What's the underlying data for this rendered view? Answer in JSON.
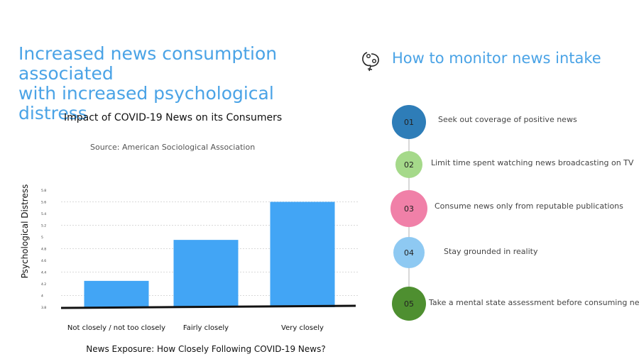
{
  "headline": {
    "line1": "Increased news consumption associated",
    "line2": "with increased psychological distress"
  },
  "monitor": {
    "title": "How to monitor news intake",
    "icon": "brain-gears-icon",
    "steps": [
      {
        "num": "01",
        "text": "Seek out coverage of positive news",
        "color": "#2e7db8"
      },
      {
        "num": "02",
        "text": "Limit time spent watching news broadcasting on TV",
        "color": "#a5d98a"
      },
      {
        "num": "03",
        "text": "Consume news only from reputable publications",
        "color": "#f080a8"
      },
      {
        "num": "04",
        "text": "Stay grounded in reality",
        "color": "#8ec9f2"
      },
      {
        "num": "05",
        "text": "Take a mental state assessment before consuming news",
        "color": "#4e8f30"
      }
    ]
  },
  "chart_data": {
    "type": "bar",
    "title": "Impact of COVID-19 News on its Consumers",
    "subtitle": "Source: American Sociological Association",
    "xlabel": "News Exposure: How Closely Following COVID-19 News?",
    "ylabel": "Psychological Distress",
    "categories": [
      "Not closely / not too closely",
      "Fairly closely",
      "Very closely"
    ],
    "values": [
      4.25,
      4.95,
      5.6
    ],
    "yticks": [
      "3.8",
      "4",
      "4.2",
      "4.4",
      "4.6",
      "4.8",
      "5",
      "5.2",
      "5.4",
      "5.6",
      "5.8"
    ],
    "ylim": [
      3.8,
      5.8
    ],
    "bar_color": "#42a5f5",
    "grid": true
  }
}
